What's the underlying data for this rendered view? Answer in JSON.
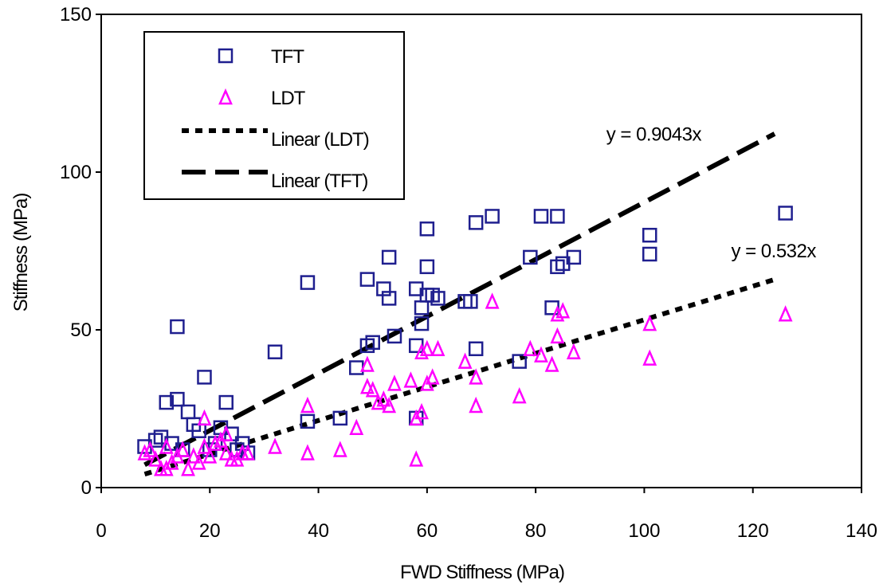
{
  "chart_data": {
    "type": "scatter",
    "title": "",
    "xlabel": "FWD Stiffness (MPa)",
    "ylabel": "Stiffness (MPa)",
    "xlim": [
      0,
      140
    ],
    "ylim": [
      0,
      150
    ],
    "xticks": [
      "0",
      "20",
      "40",
      "60",
      "80",
      "100",
      "120",
      "140"
    ],
    "yticks": [
      "0",
      "50",
      "100",
      "150"
    ],
    "grid": false,
    "legend_position": "top-left",
    "series": [
      {
        "name": "TFT",
        "marker": "square",
        "color": "#1f1f8f",
        "points": [
          [
            8,
            13
          ],
          [
            10,
            15
          ],
          [
            11,
            16
          ],
          [
            12,
            27
          ],
          [
            13,
            14
          ],
          [
            14,
            51
          ],
          [
            14,
            28
          ],
          [
            15,
            12
          ],
          [
            16,
            24
          ],
          [
            17,
            20
          ],
          [
            18,
            18
          ],
          [
            19,
            35
          ],
          [
            20,
            12
          ],
          [
            21,
            14
          ],
          [
            22,
            19
          ],
          [
            23,
            27
          ],
          [
            24,
            17
          ],
          [
            25,
            12
          ],
          [
            26,
            14
          ],
          [
            27,
            11
          ],
          [
            32,
            43
          ],
          [
            38,
            21
          ],
          [
            38,
            65
          ],
          [
            44,
            22
          ],
          [
            47,
            38
          ],
          [
            49,
            45
          ],
          [
            49,
            66
          ],
          [
            50,
            46
          ],
          [
            52,
            63
          ],
          [
            53,
            73
          ],
          [
            53,
            60
          ],
          [
            54,
            48
          ],
          [
            58,
            63
          ],
          [
            58,
            45
          ],
          [
            58,
            22
          ],
          [
            59,
            57
          ],
          [
            59,
            52
          ],
          [
            60,
            82
          ],
          [
            60,
            70
          ],
          [
            60,
            61
          ],
          [
            61,
            61
          ],
          [
            62,
            60
          ],
          [
            67,
            59
          ],
          [
            68,
            59
          ],
          [
            69,
            84
          ],
          [
            69,
            44
          ],
          [
            72,
            86
          ],
          [
            77,
            40
          ],
          [
            79,
            73
          ],
          [
            81,
            86
          ],
          [
            83,
            57
          ],
          [
            84,
            86
          ],
          [
            84,
            70
          ],
          [
            85,
            71
          ],
          [
            87,
            73
          ],
          [
            101,
            80
          ],
          [
            101,
            74
          ],
          [
            126,
            87
          ]
        ]
      },
      {
        "name": "LDT",
        "marker": "triangle",
        "color": "#ff00ff",
        "points": [
          [
            8,
            11
          ],
          [
            9,
            12
          ],
          [
            10,
            9
          ],
          [
            11,
            6
          ],
          [
            12,
            13
          ],
          [
            12,
            6
          ],
          [
            13,
            8
          ],
          [
            14,
            10
          ],
          [
            15,
            12
          ],
          [
            16,
            6
          ],
          [
            17,
            10
          ],
          [
            18,
            8
          ],
          [
            19,
            13
          ],
          [
            19,
            22
          ],
          [
            20,
            10
          ],
          [
            21,
            14
          ],
          [
            22,
            15
          ],
          [
            23,
            17
          ],
          [
            23,
            11
          ],
          [
            24,
            9
          ],
          [
            25,
            9
          ],
          [
            26,
            11
          ],
          [
            27,
            11
          ],
          [
            32,
            13
          ],
          [
            38,
            11
          ],
          [
            38,
            26
          ],
          [
            44,
            12
          ],
          [
            47,
            19
          ],
          [
            49,
            39
          ],
          [
            49,
            32
          ],
          [
            50,
            31
          ],
          [
            51,
            27
          ],
          [
            52,
            28
          ],
          [
            53,
            26
          ],
          [
            54,
            33
          ],
          [
            57,
            34
          ],
          [
            58,
            9
          ],
          [
            58,
            22
          ],
          [
            59,
            24
          ],
          [
            59,
            43
          ],
          [
            60,
            33
          ],
          [
            60,
            44
          ],
          [
            61,
            35
          ],
          [
            62,
            44
          ],
          [
            67,
            40
          ],
          [
            69,
            26
          ],
          [
            69,
            35
          ],
          [
            72,
            59
          ],
          [
            77,
            29
          ],
          [
            79,
            44
          ],
          [
            81,
            42
          ],
          [
            83,
            39
          ],
          [
            84,
            48
          ],
          [
            84,
            55
          ],
          [
            85,
            56
          ],
          [
            87,
            43
          ],
          [
            101,
            52
          ],
          [
            101,
            41
          ],
          [
            126,
            55
          ]
        ]
      }
    ],
    "trendlines": [
      {
        "name": "Linear (LDT)",
        "style": "dotted",
        "slope": 0.532,
        "x_range": [
          8,
          124
        ],
        "annotation": "y = 0.532x",
        "annotation_at": [
          116,
          73
        ]
      },
      {
        "name": "Linear (TFT)",
        "style": "dashed",
        "slope": 0.9043,
        "x_range": [
          8,
          124
        ],
        "annotation": "y = 0.9043x",
        "annotation_at": [
          93,
          110
        ]
      }
    ]
  }
}
